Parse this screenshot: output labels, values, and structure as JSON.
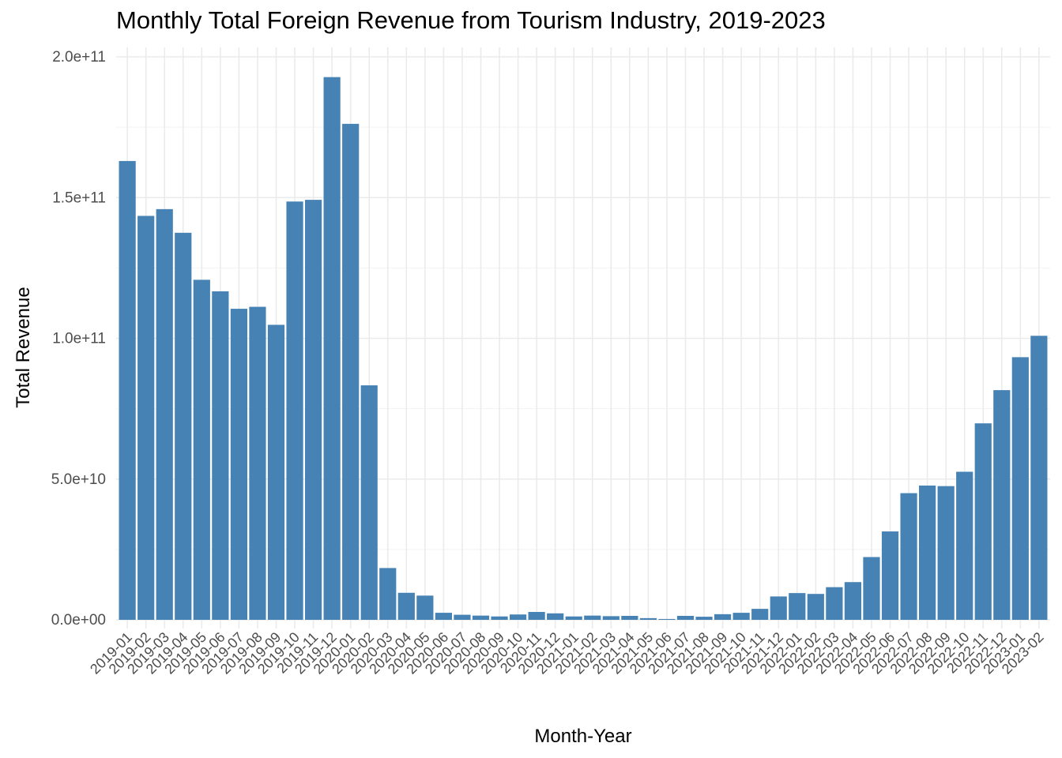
{
  "chart_data": {
    "type": "bar",
    "title": "Monthly Total Foreign Revenue from Tourism Industry, 2019-2023",
    "xlabel": "Month-Year",
    "ylabel": "Total Revenue",
    "ylim": [
      0,
      200000000000
    ],
    "yticks": [
      0,
      50000000000,
      100000000000,
      150000000000,
      200000000000
    ],
    "ytick_labels": [
      "0.0e+00",
      "5.0e+10",
      "1.0e+11",
      "1.5e+11",
      "2.0e+11"
    ],
    "grid": true,
    "bar_color": "#4682b4",
    "categories": [
      "2019-01",
      "2019-02",
      "2019-03",
      "2019-04",
      "2019-05",
      "2019-06",
      "2019-07",
      "2019-08",
      "2019-09",
      "2019-10",
      "2019-11",
      "2019-12",
      "2020-01",
      "2020-02",
      "2020-03",
      "2020-04",
      "2020-05",
      "2020-06",
      "2020-07",
      "2020-08",
      "2020-09",
      "2020-10",
      "2020-11",
      "2020-12",
      "2021-01",
      "2021-02",
      "2021-03",
      "2021-04",
      "2021-05",
      "2021-06",
      "2021-07",
      "2021-08",
      "2021-09",
      "2021-10",
      "2021-11",
      "2021-12",
      "2022-01",
      "2022-02",
      "2022-03",
      "2022-04",
      "2022-05",
      "2022-06",
      "2022-07",
      "2022-08",
      "2022-09",
      "2022-10",
      "2022-11",
      "2022-12",
      "2023-01",
      "2023-02"
    ],
    "values": [
      163000000000,
      143500000000,
      145900000000,
      137500000000,
      120800000000,
      116700000000,
      110500000000,
      111200000000,
      104800000000,
      148600000000,
      149200000000,
      192800000000,
      176200000000,
      83300000000,
      18400000000,
      9600000000,
      8600000000,
      2500000000,
      1800000000,
      1500000000,
      1200000000,
      1900000000,
      2800000000,
      2300000000,
      1200000000,
      1500000000,
      1300000000,
      1400000000,
      600000000,
      300000000,
      1400000000,
      1100000000,
      2000000000,
      2500000000,
      3900000000,
      8300000000,
      9500000000,
      9200000000,
      11600000000,
      13400000000,
      22300000000,
      31400000000,
      45000000000,
      47700000000,
      47500000000,
      52600000000,
      69800000000,
      81600000000,
      93300000000,
      100900000000
    ]
  }
}
